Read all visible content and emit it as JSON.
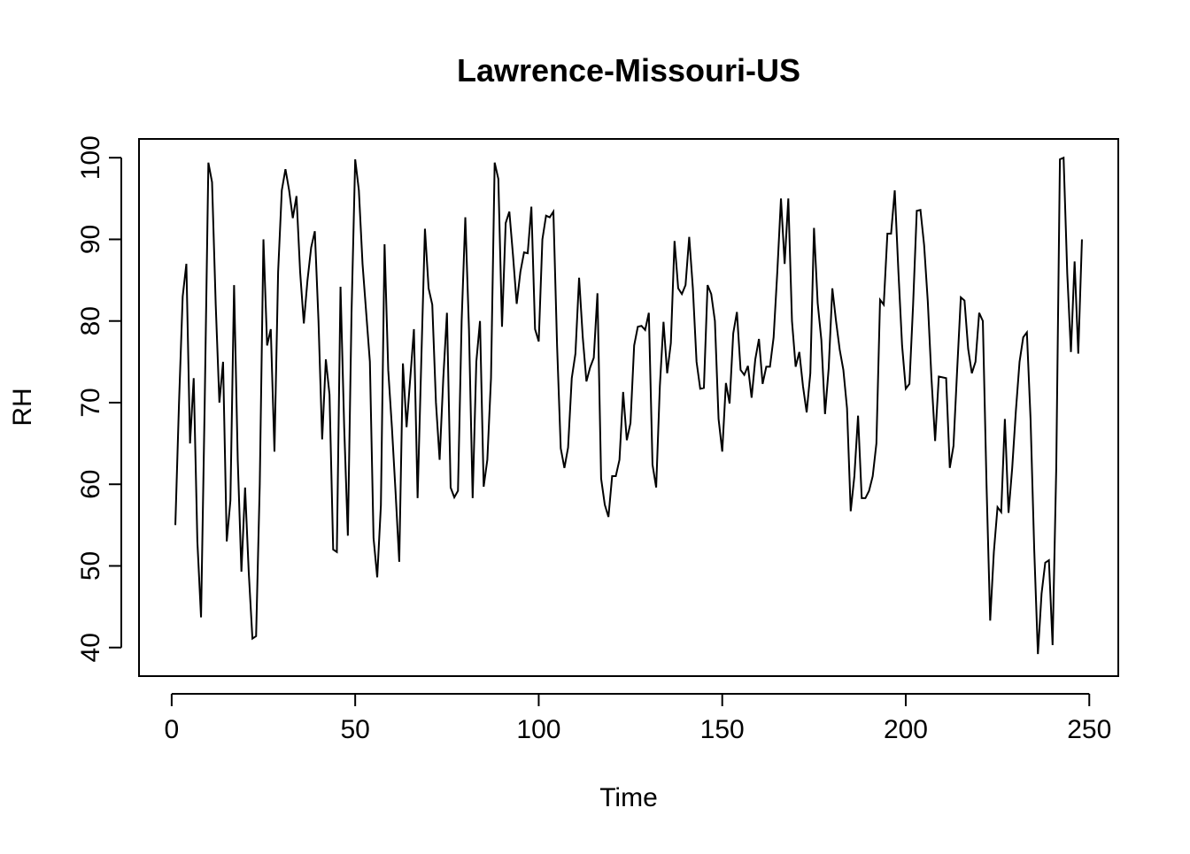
{
  "chart_data": {
    "type": "line",
    "title": "Lawrence-Missouri-US",
    "xlabel": "Time",
    "ylabel": "RH",
    "xlim": [
      -8.9,
      257.9
    ],
    "ylim": [
      36.5,
      102.3
    ],
    "x_ticks": [
      0,
      50,
      100,
      150,
      200,
      250
    ],
    "y_ticks": [
      40,
      50,
      60,
      70,
      80,
      90,
      100
    ],
    "x_tick_labels": [
      "0",
      "50",
      "100",
      "150",
      "200",
      "250"
    ],
    "y_tick_labels": [
      "40",
      "50",
      "60",
      "70",
      "80",
      "90",
      "100"
    ],
    "grid": false,
    "legend": "none",
    "line_color": "#000000",
    "series": [
      {
        "x_start": 1,
        "values": [
          55,
          70,
          83,
          87,
          65,
          73,
          53,
          43.7,
          70,
          99.4,
          97,
          82,
          70,
          75,
          53,
          58,
          84.4,
          63,
          49.3,
          59.6,
          49.2,
          41.1,
          41.4,
          60,
          90,
          77,
          79,
          64,
          86,
          96,
          98.6,
          96,
          92.6,
          95.3,
          86,
          79.7,
          85,
          89,
          91,
          80,
          65.5,
          75.3,
          71,
          52,
          51.7,
          84.2,
          67,
          53.7,
          81,
          99.8,
          96,
          87,
          81,
          75,
          53.4,
          48.6,
          57.4,
          89.4,
          74,
          67,
          59,
          50.5,
          74.8,
          67,
          73,
          79,
          58.3,
          75,
          91.3,
          84,
          82,
          70,
          63,
          73,
          81,
          59.6,
          58.4,
          59.2,
          80,
          92.7,
          79,
          58.3,
          75,
          80,
          59.7,
          63,
          73,
          99.4,
          97.4,
          79.3,
          92,
          93.4,
          88,
          82.1,
          86,
          88.4,
          88.3,
          94,
          79,
          77.5,
          90,
          92.9,
          92.7,
          93.4,
          77,
          64.4,
          62,
          64.5,
          73,
          76,
          85.3,
          78,
          72.6,
          74.3,
          75.5,
          83.4,
          60.7,
          57.5,
          56,
          61,
          61,
          63,
          71.3,
          65.4,
          67.5,
          77,
          79.3,
          79.4,
          78.9,
          81,
          62.4,
          59.6,
          72,
          79.9,
          73.6,
          77.3,
          89.8,
          84,
          83.3,
          84.4,
          90.3,
          84,
          75,
          71.7,
          71.8,
          84.4,
          83.3,
          80,
          68,
          64,
          72.4,
          69.9,
          78.5,
          81.1,
          74,
          73.4,
          74.5,
          70.6,
          75.3,
          77.8,
          72.3,
          74.4,
          74.4,
          78,
          86,
          95,
          87,
          95,
          80,
          74.4,
          76.2,
          72,
          68.8,
          73.6,
          91.4,
          82.2,
          77.7,
          68.6,
          74.2,
          84,
          80,
          76.5,
          74,
          69.3,
          56.7,
          61,
          68.4,
          58.3,
          58.3,
          59.2,
          61,
          65,
          82.6,
          82,
          90.7,
          90.7,
          96,
          86,
          77,
          71.7,
          72.3,
          82,
          93.5,
          93.6,
          89.3,
          82.4,
          73,
          65.3,
          73.2,
          73.1,
          73,
          62,
          64.7,
          74,
          82.9,
          82.5,
          76.6,
          73.6,
          75,
          81,
          80,
          60,
          43.3,
          51.7,
          57.2,
          56.6,
          68,
          56.5,
          62,
          69,
          75,
          78,
          78.6,
          68,
          52,
          39.2,
          46.6,
          50.4,
          50.7,
          40.3,
          62,
          99.8,
          100,
          85.8,
          76.2,
          87.3,
          76,
          90
        ]
      }
    ]
  }
}
